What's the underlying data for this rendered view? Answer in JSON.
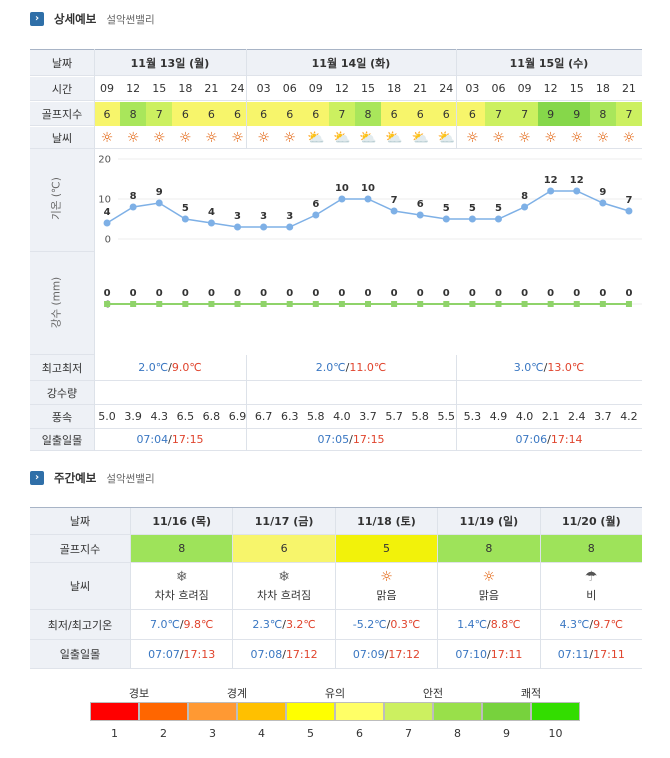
{
  "sections": {
    "detail": {
      "title": "상세예보",
      "place": "설악썬밸리"
    },
    "weekly": {
      "title": "주간예보",
      "place": "설악썬밸리"
    }
  },
  "labels": {
    "date": "날짜",
    "time": "시간",
    "golf": "골프지수",
    "weather": "날씨",
    "temp": "기온 (℃)",
    "rain": "강수 (mm)",
    "minmax": "최고최저",
    "rainfall": "강수량",
    "wind": "풍속",
    "sun": "일출일몰"
  },
  "days": [
    {
      "label": "11월 13일 (월)",
      "minmax_low": "2.0℃",
      "minmax_high": "9.0℃",
      "sunrise": "07:04",
      "sunset": "17:15"
    },
    {
      "label": "11월 14일 (화)",
      "minmax_low": "2.0℃",
      "minmax_high": "11.0℃",
      "sunrise": "07:05",
      "sunset": "17:15"
    },
    {
      "label": "11월 15일 (수)",
      "minmax_low": "3.0℃",
      "minmax_high": "13.0℃",
      "sunrise": "07:06",
      "sunset": "17:14"
    }
  ],
  "hours": [
    "09",
    "12",
    "15",
    "18",
    "21",
    "24",
    "03",
    "06",
    "09",
    "12",
    "15",
    "18",
    "21",
    "24",
    "03",
    "06",
    "09",
    "12",
    "15",
    "18",
    "21"
  ],
  "golf": [
    "6",
    "8",
    "7",
    "6",
    "6",
    "6",
    "6",
    "6",
    "6",
    "7",
    "8",
    "6",
    "6",
    "6",
    "6",
    "7",
    "7",
    "9",
    "9",
    "8",
    "7"
  ],
  "weather": [
    "sun",
    "sun",
    "sun",
    "sun",
    "sun",
    "sun",
    "sun",
    "sun",
    "cloud",
    "cloud",
    "cloud",
    "cloud",
    "cloud",
    "cloud",
    "sun",
    "sun",
    "sun",
    "sun",
    "sun",
    "sun",
    "sun"
  ],
  "wind": [
    "5.0",
    "3.9",
    "4.3",
    "6.5",
    "6.8",
    "6.9",
    "6.7",
    "6.3",
    "5.8",
    "4.0",
    "3.7",
    "5.7",
    "5.8",
    "5.5",
    "5.3",
    "4.9",
    "4.0",
    "2.1",
    "2.4",
    "3.7",
    "4.2"
  ],
  "chart_data": [
    {
      "type": "line",
      "ylabel": "기온 (℃)",
      "ylim": [
        0,
        20
      ],
      "yticks": [
        0,
        10,
        20
      ],
      "x": [
        "09",
        "12",
        "15",
        "18",
        "21",
        "24",
        "03",
        "06",
        "09",
        "12",
        "15",
        "18",
        "21",
        "24",
        "03",
        "06",
        "09",
        "12",
        "15",
        "18",
        "21"
      ],
      "values": [
        4,
        8,
        9,
        5,
        4,
        3,
        3,
        3,
        6,
        10,
        10,
        7,
        6,
        5,
        5,
        5,
        8,
        12,
        12,
        9,
        7
      ],
      "color": "#7eb0e6"
    },
    {
      "type": "line",
      "ylabel": "강수 (mm)",
      "yticks": [
        0
      ],
      "x": [
        "09",
        "12",
        "15",
        "18",
        "21",
        "24",
        "03",
        "06",
        "09",
        "12",
        "15",
        "18",
        "21",
        "24",
        "03",
        "06",
        "09",
        "12",
        "15",
        "18",
        "21"
      ],
      "values": [
        0,
        0,
        0,
        0,
        0,
        0,
        0,
        0,
        0,
        0,
        0,
        0,
        0,
        0,
        0,
        0,
        0,
        0,
        0,
        0,
        0
      ],
      "color": "#8fd36a"
    }
  ],
  "weekly": {
    "labels": {
      "date": "날짜",
      "golf": "골프지수",
      "weather": "날씨",
      "temp": "최저/최고기온",
      "sun": "일출일몰"
    },
    "days": [
      {
        "date": "11/16 (목)",
        "golf": "8",
        "golf_color": "#9ee35a",
        "icon": "rain-snow-icon",
        "desc": "차차 흐려짐",
        "low": "7.0℃",
        "high": "9.8℃",
        "sunrise": "07:07",
        "sunset": "17:13"
      },
      {
        "date": "11/17 (금)",
        "golf": "6",
        "golf_color": "#f7f56b",
        "icon": "rain-snow-icon",
        "desc": "차차 흐려짐",
        "low": "2.3℃",
        "high": "3.2℃",
        "sunrise": "07:08",
        "sunset": "17:12"
      },
      {
        "date": "11/18 (토)",
        "golf": "5",
        "golf_color": "#f2f20a",
        "icon": "sun-icon",
        "desc": "맑음",
        "low": "-5.2℃",
        "high": "0.3℃",
        "sunrise": "07:09",
        "sunset": "17:12"
      },
      {
        "date": "11/19 (일)",
        "golf": "8",
        "golf_color": "#9ee35a",
        "icon": "sun-icon",
        "desc": "맑음",
        "low": "1.4℃",
        "high": "8.8℃",
        "sunrise": "07:10",
        "sunset": "17:11"
      },
      {
        "date": "11/20 (월)",
        "golf": "8",
        "golf_color": "#9ee35a",
        "icon": "rain-cloud-icon",
        "desc": "비",
        "low": "4.3℃",
        "high": "9.7℃",
        "sunrise": "07:11",
        "sunset": "17:11"
      }
    ]
  },
  "legend": {
    "categories": [
      "경보",
      "경계",
      "유의",
      "안전",
      "쾌적"
    ],
    "numbers": [
      "1",
      "2",
      "3",
      "4",
      "5",
      "6",
      "7",
      "8",
      "9",
      "10"
    ],
    "colors": [
      "#ff0000",
      "#ff6600",
      "#ff9933",
      "#ffc000",
      "#ffff00",
      "#ffff66",
      "#ccf060",
      "#99e04a",
      "#77d23d",
      "#33dd00"
    ]
  }
}
